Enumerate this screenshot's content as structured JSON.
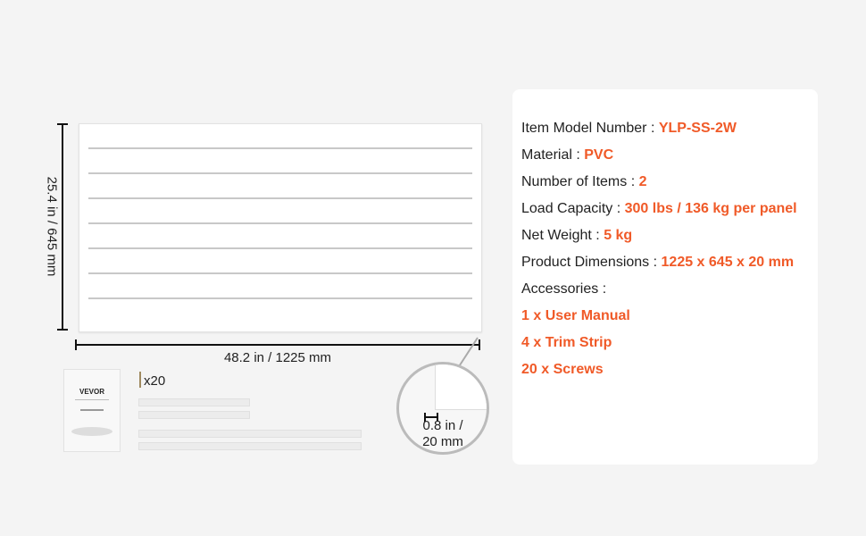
{
  "dimensions": {
    "height": "25.4 in / 645 mm",
    "width": "48.2 in / 1225 mm",
    "thickness_line1": "0.8 in /",
    "thickness_line2": "20 mm"
  },
  "accessories_image": {
    "manual_brand": "VEVOR",
    "screws_count": "x20"
  },
  "specs": [
    {
      "label": "Item Model Number : ",
      "value": "YLP-SS-2W"
    },
    {
      "label": "Material : ",
      "value": "PVC"
    },
    {
      "label": "Number of Items : ",
      "value": "2"
    },
    {
      "label": "Load Capacity : ",
      "value": "300 lbs / 136 kg per panel"
    },
    {
      "label": "Net Weight : ",
      "value": "5 kg"
    },
    {
      "label": "Product Dimensions : ",
      "value": "1225 x 645 x 20 mm"
    }
  ],
  "accessories_label": "Accessories :",
  "accessories": [
    "1 x User Manual",
    "4 x Trim Strip",
    "20 x Screws"
  ],
  "colors": {
    "accent": "#f05a28",
    "background": "#f4f4f4"
  }
}
